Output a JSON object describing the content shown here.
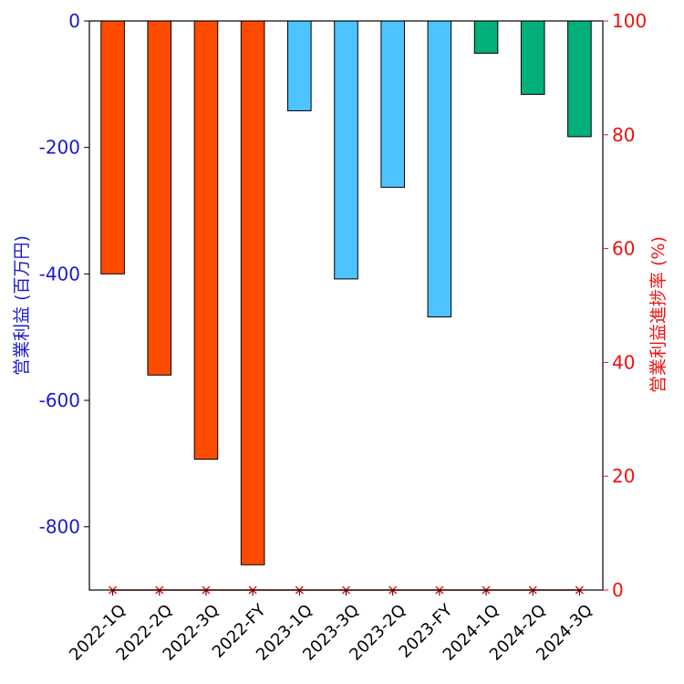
{
  "chart_data": {
    "type": "bar",
    "categories": [
      "2022-1Q",
      "2022-2Q",
      "2022-3Q",
      "2022-FY",
      "2023-1Q",
      "2023-3Q",
      "2023-2Q",
      "2023-FY",
      "2024-1Q",
      "2024-2Q",
      "2024-3Q"
    ],
    "series": [
      {
        "axis": "left",
        "values": [
          -400,
          -560,
          -693,
          -860,
          -142,
          -408,
          -263,
          -468,
          -51,
          -116,
          -183
        ],
        "colors": [
          "#ff4b00",
          "#ff4b00",
          "#ff4b00",
          "#ff4b00",
          "#4dc4ff",
          "#4dc4ff",
          "#4dc4ff",
          "#4dc4ff",
          "#03af7a",
          "#03af7a",
          "#03af7a"
        ]
      },
      {
        "axis": "right",
        "type": "scatter",
        "marker": "x",
        "color": "#ee1111",
        "values": [
          0,
          0,
          0,
          0,
          0,
          0,
          0,
          0,
          0,
          0,
          0
        ]
      }
    ],
    "ylabel": "営業利益 (百万円)",
    "ylabel_right": "営業利益進捗率 (%)",
    "xlabel": "",
    "title": "",
    "ylim": [
      -900,
      0
    ],
    "ylim_right": [
      0,
      100
    ],
    "yticks": [
      0,
      -200,
      -400,
      -600,
      -800
    ],
    "yticks_right": [
      0,
      20,
      40,
      60,
      80,
      100
    ],
    "left_axis_color": "#1a1acc",
    "right_axis_color": "#ee1111",
    "grid": false,
    "legend": "none"
  }
}
